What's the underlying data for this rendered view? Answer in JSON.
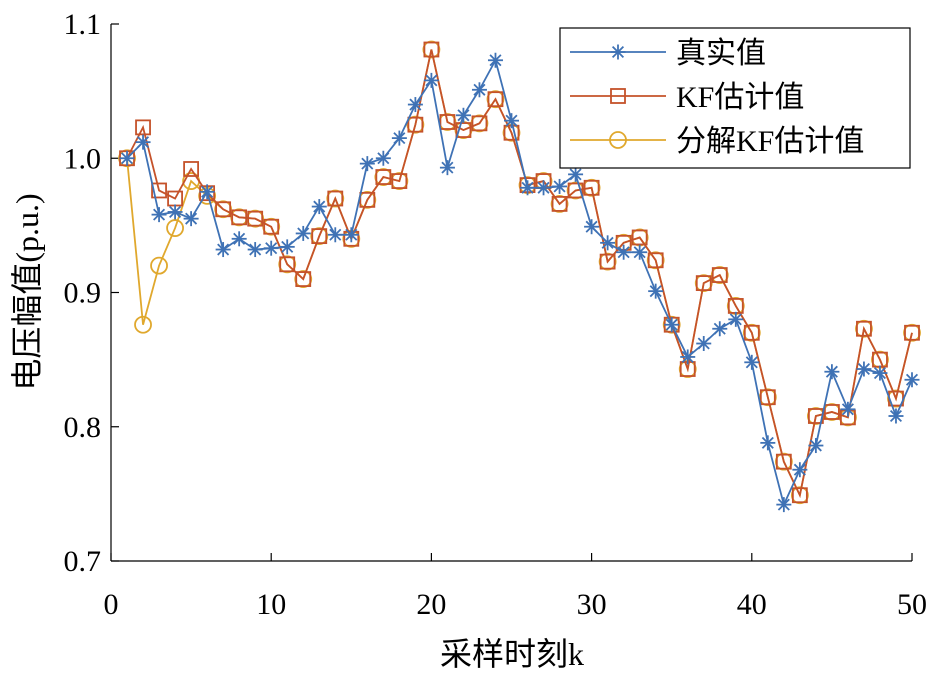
{
  "chart_data": {
    "type": "line",
    "xlabel": "采样时刻k",
    "ylabel": "电压幅值(p.u.)",
    "xlim": [
      0,
      50
    ],
    "ylim": [
      0.7,
      1.1
    ],
    "xticks": [
      0,
      10,
      20,
      30,
      40,
      50
    ],
    "yticks": [
      0.7,
      0.8,
      0.9,
      1.0,
      1.1
    ],
    "ytick_labels": [
      "0.7",
      "0.8",
      "0.9",
      "1.0",
      "1.1"
    ],
    "legend_position": "top-right",
    "x": [
      1,
      2,
      3,
      4,
      5,
      6,
      7,
      8,
      9,
      10,
      11,
      12,
      13,
      14,
      15,
      16,
      17,
      18,
      19,
      20,
      21,
      22,
      23,
      24,
      25,
      26,
      27,
      28,
      29,
      30,
      31,
      32,
      33,
      34,
      35,
      36,
      37,
      38,
      39,
      40,
      41,
      42,
      43,
      44,
      45,
      46,
      47,
      48,
      49,
      50
    ],
    "series": [
      {
        "name": "真实值",
        "color": "#3f72b5",
        "marker": "asterisk",
        "values": [
          1.0,
          1.012,
          0.958,
          0.96,
          0.955,
          0.975,
          0.932,
          0.94,
          0.932,
          0.933,
          0.934,
          0.944,
          0.964,
          0.943,
          0.943,
          0.996,
          1.0,
          1.015,
          1.04,
          1.058,
          0.993,
          1.032,
          1.051,
          1.073,
          1.028,
          0.978,
          0.978,
          0.979,
          0.988,
          0.949,
          0.937,
          0.93,
          0.93,
          0.901,
          0.876,
          0.852,
          0.862,
          0.873,
          0.88,
          0.848,
          0.788,
          0.742,
          0.768,
          0.786,
          0.841,
          0.813,
          0.843,
          0.84,
          0.808,
          0.835
        ]
      },
      {
        "name": "KF估计值",
        "color": "#c5522a",
        "marker": "square",
        "values": [
          1.0,
          1.023,
          0.976,
          0.97,
          0.992,
          0.974,
          0.962,
          0.956,
          0.955,
          0.949,
          0.921,
          0.91,
          0.942,
          0.97,
          0.94,
          0.969,
          0.986,
          0.983,
          1.025,
          1.081,
          1.027,
          1.021,
          1.026,
          1.044,
          1.019,
          0.98,
          0.983,
          0.966,
          0.976,
          0.978,
          0.923,
          0.937,
          0.941,
          0.924,
          0.876,
          0.843,
          0.907,
          0.913,
          0.89,
          0.87,
          0.822,
          0.774,
          0.749,
          0.808,
          0.811,
          0.807,
          0.873,
          0.85,
          0.821,
          0.87
        ]
      },
      {
        "name": "分解KF估计值",
        "color": "#e0a82d",
        "marker": "circle",
        "values": [
          1.0,
          0.876,
          0.92,
          0.948,
          0.983,
          0.972,
          0.962,
          0.956,
          0.955,
          0.949,
          0.921,
          0.91,
          0.942,
          0.97,
          0.94,
          0.969,
          0.986,
          0.983,
          1.025,
          1.081,
          1.027,
          1.021,
          1.026,
          1.044,
          1.019,
          0.98,
          0.983,
          0.966,
          0.976,
          0.978,
          0.923,
          0.937,
          0.941,
          0.924,
          0.876,
          0.843,
          0.907,
          0.913,
          0.89,
          0.87,
          0.822,
          0.774,
          0.749,
          0.808,
          0.811,
          0.807,
          0.873,
          0.85,
          0.821,
          0.87
        ]
      }
    ]
  }
}
